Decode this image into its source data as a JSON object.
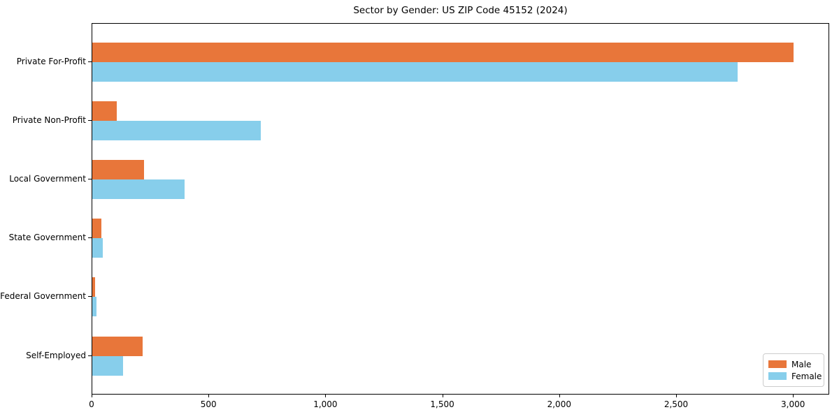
{
  "chart_data": {
    "type": "bar",
    "orientation": "horizontal",
    "title": "Sector by Gender: US ZIP Code 45152 (2024)",
    "categories": [
      "Private For-Profit",
      "Private Non-Profit",
      "Local Government",
      "State Government",
      "Federal Government",
      "Self-Employed"
    ],
    "series": [
      {
        "name": "Male",
        "color": "#e8763a",
        "values": [
          3000,
          105,
          220,
          40,
          12,
          215
        ]
      },
      {
        "name": "Female",
        "color": "#87ceeb",
        "values": [
          2760,
          720,
          395,
          45,
          18,
          130
        ]
      }
    ],
    "xlabel": "",
    "ylabel": "",
    "xlim": [
      0,
      3155
    ],
    "xticks": [
      0,
      500,
      1000,
      1500,
      2000,
      2500,
      3000
    ],
    "xtick_labels": [
      "0",
      "500",
      "1,000",
      "1,500",
      "2,000",
      "2,500",
      "3,000"
    ],
    "grid": false,
    "legend": {
      "position": "lower right",
      "entries": [
        "Male",
        "Female"
      ]
    },
    "colors": {
      "axes": "#000000",
      "background": "#ffffff",
      "legend_border": "#cccccc"
    }
  }
}
